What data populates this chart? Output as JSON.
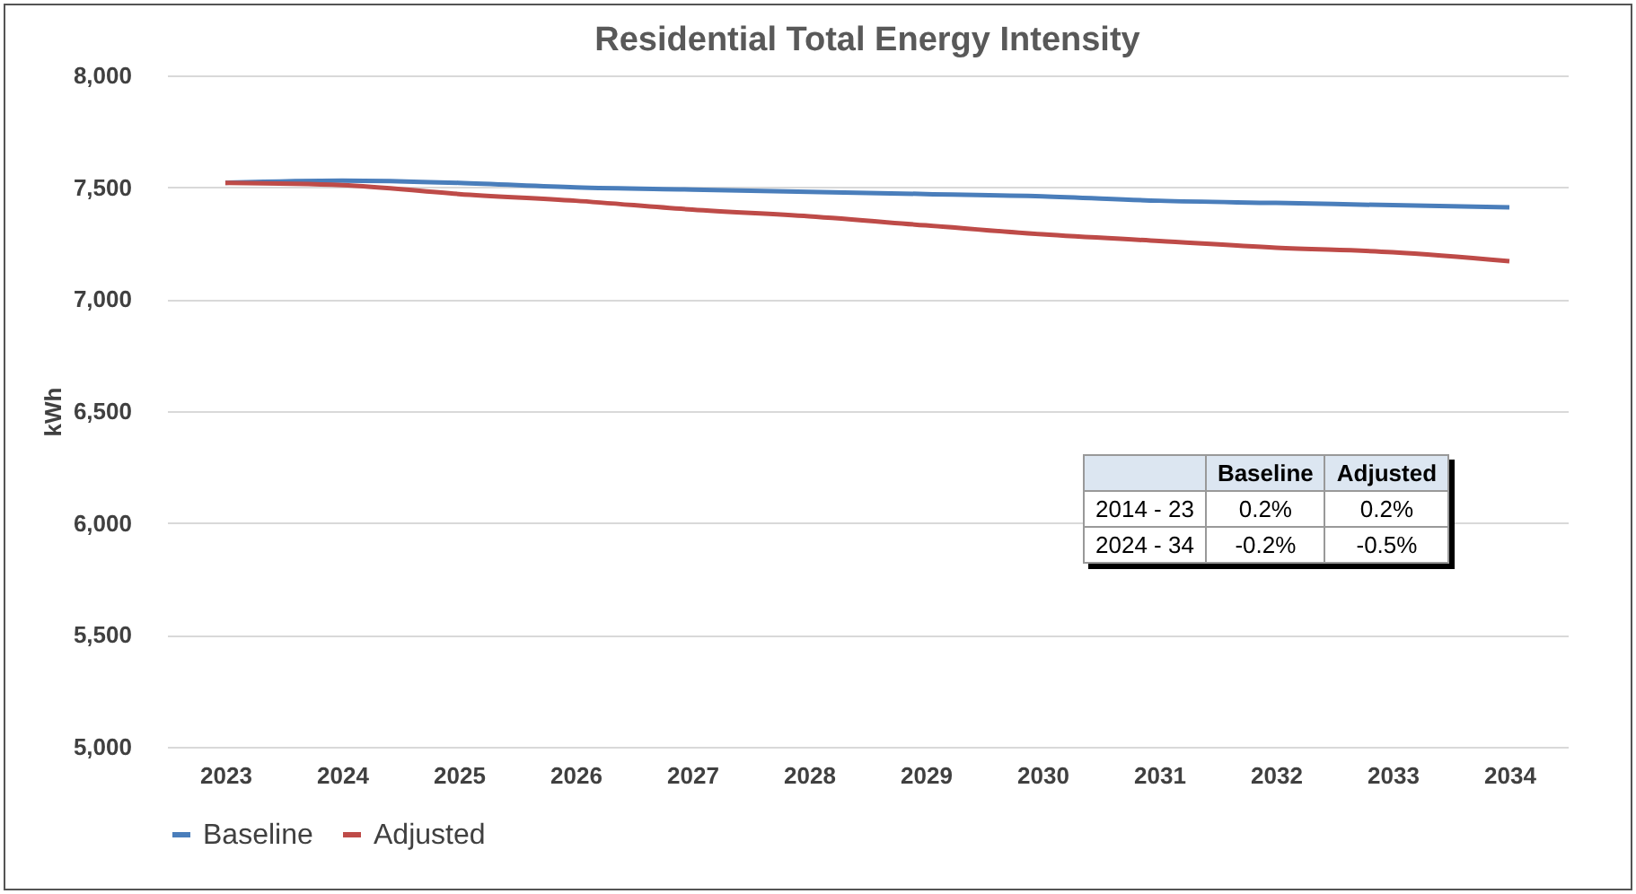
{
  "chart_data": {
    "type": "line",
    "title": "Residential Total Energy Intensity",
    "ylabel": "kWh",
    "categories": [
      "2023",
      "2024",
      "2025",
      "2026",
      "2027",
      "2028",
      "2029",
      "2030",
      "2031",
      "2032",
      "2033",
      "2034"
    ],
    "series": [
      {
        "name": "Baseline",
        "color": "#4a7ebb",
        "values": [
          7520,
          7530,
          7520,
          7500,
          7490,
          7480,
          7470,
          7460,
          7440,
          7430,
          7420,
          7410
        ]
      },
      {
        "name": "Adjusted",
        "color": "#be4b48",
        "values": [
          7520,
          7510,
          7470,
          7440,
          7400,
          7370,
          7330,
          7290,
          7260,
          7230,
          7210,
          7170
        ]
      }
    ],
    "ylim": [
      5000,
      8000
    ],
    "yticks": [
      {
        "value": 5000,
        "label": "5,000"
      },
      {
        "value": 5500,
        "label": "5,500"
      },
      {
        "value": 6000,
        "label": "6,000"
      },
      {
        "value": 6500,
        "label": "6,500"
      },
      {
        "value": 7000,
        "label": "7,000"
      },
      {
        "value": 7500,
        "label": "7,500"
      },
      {
        "value": 8000,
        "label": "8,000"
      }
    ],
    "grid": "y",
    "legend": "bottom",
    "marker": "none",
    "line_style": "solid",
    "annotations": [
      "Baseline",
      "Adjusted",
      "2014 - 23",
      "0.2%",
      "0.2%",
      "2024 - 34",
      "-0.2%",
      "-0.5%"
    ]
  }
}
